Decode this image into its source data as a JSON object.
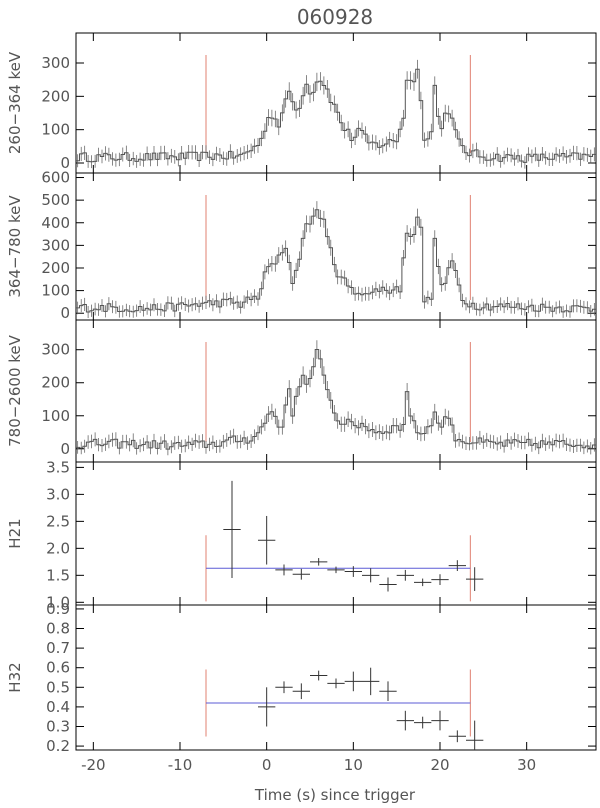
{
  "chart_data": {
    "type": "line",
    "title": "060928",
    "xlabel": "Time (s) since trigger",
    "xlim": [
      -22,
      38
    ],
    "xticks": [
      -20,
      -10,
      0,
      10,
      20,
      30
    ],
    "markers": [
      -7,
      23.5
    ],
    "panels": [
      {
        "ylabel": "260−364 keV",
        "ylim": [
          -30,
          390
        ],
        "yticks": [
          0,
          100,
          200,
          300
        ],
        "curve": [
          [
            -22,
            18
          ],
          [
            -18,
            17
          ],
          [
            -14,
            18
          ],
          [
            -10,
            18
          ],
          [
            -6,
            22
          ],
          [
            -3,
            20
          ],
          [
            -1.5,
            45
          ],
          [
            -0.5,
            70
          ],
          [
            0,
            130
          ],
          [
            0.7,
            150
          ],
          [
            1.3,
            110
          ],
          [
            2,
            160
          ],
          [
            2.6,
            220
          ],
          [
            3,
            180
          ],
          [
            3.6,
            150
          ],
          [
            4,
            200
          ],
          [
            4.6,
            235
          ],
          [
            5.2,
            210
          ],
          [
            5.8,
            245
          ],
          [
            6.3,
            255
          ],
          [
            7,
            220
          ],
          [
            7.6,
            180
          ],
          [
            8.2,
            150
          ],
          [
            8.8,
            110
          ],
          [
            9.4,
            90
          ],
          [
            10,
            70
          ],
          [
            10.6,
            100
          ],
          [
            11.2,
            80
          ],
          [
            11.8,
            60
          ],
          [
            12.4,
            55
          ],
          [
            13,
            55
          ],
          [
            14,
            60
          ],
          [
            15,
            70
          ],
          [
            15.8,
            140
          ],
          [
            16.3,
            270
          ],
          [
            16.8,
            250
          ],
          [
            17.2,
            240
          ],
          [
            17.6,
            310
          ],
          [
            18,
            90
          ],
          [
            18.5,
            70
          ],
          [
            19,
            90
          ],
          [
            19.5,
            270
          ],
          [
            19.9,
            90
          ],
          [
            20.5,
            140
          ],
          [
            21,
            160
          ],
          [
            21.6,
            110
          ],
          [
            22.2,
            60
          ],
          [
            23,
            35
          ],
          [
            25,
            20
          ],
          [
            30,
            15
          ],
          [
            35,
            18
          ],
          [
            38,
            20
          ]
        ],
        "noise": 20
      },
      {
        "ylabel": "364−780 keV",
        "ylim": [
          -30,
          620
        ],
        "yticks": [
          0,
          100,
          200,
          300,
          400,
          500,
          600
        ],
        "curve": [
          [
            -22,
            25
          ],
          [
            -18,
            25
          ],
          [
            -14,
            20
          ],
          [
            -10,
            30
          ],
          [
            -8,
            40
          ],
          [
            -6,
            45
          ],
          [
            -4,
            50
          ],
          [
            -3,
            40
          ],
          [
            -2,
            60
          ],
          [
            -1,
            70
          ],
          [
            0,
            190
          ],
          [
            0.5,
            220
          ],
          [
            1,
            210
          ],
          [
            1.5,
            250
          ],
          [
            2,
            300
          ],
          [
            2.5,
            260
          ],
          [
            3,
            140
          ],
          [
            3.5,
            190
          ],
          [
            4,
            300
          ],
          [
            4.6,
            380
          ],
          [
            5.2,
            420
          ],
          [
            5.8,
            450
          ],
          [
            6.4,
            430
          ],
          [
            7,
            330
          ],
          [
            7.6,
            250
          ],
          [
            8.2,
            180
          ],
          [
            8.8,
            150
          ],
          [
            9.4,
            120
          ],
          [
            10,
            90
          ],
          [
            11,
            100
          ],
          [
            12,
            80
          ],
          [
            13,
            110
          ],
          [
            14,
            100
          ],
          [
            15,
            110
          ],
          [
            15.6,
            110
          ],
          [
            16,
            350
          ],
          [
            16.4,
            380
          ],
          [
            16.8,
            330
          ],
          [
            17.3,
            400
          ],
          [
            17.7,
            520
          ],
          [
            18,
            60
          ],
          [
            18.5,
            50
          ],
          [
            19,
            80
          ],
          [
            19.6,
            430
          ],
          [
            19.9,
            110
          ],
          [
            20.5,
            120
          ],
          [
            21,
            200
          ],
          [
            21.6,
            220
          ],
          [
            22,
            150
          ],
          [
            22.6,
            60
          ],
          [
            24,
            35
          ],
          [
            28,
            30
          ],
          [
            33,
            25
          ],
          [
            38,
            20
          ]
        ],
        "noise": 28
      },
      {
        "ylabel": "780−2600 keV",
        "ylim": [
          -40,
          390
        ],
        "yticks": [
          0,
          100,
          200,
          300
        ],
        "curve": [
          [
            -22,
            15
          ],
          [
            -16,
            15
          ],
          [
            -10,
            10
          ],
          [
            -6,
            15
          ],
          [
            -4,
            25
          ],
          [
            -2,
            30
          ],
          [
            -1,
            45
          ],
          [
            0,
            90
          ],
          [
            0.5,
            120
          ],
          [
            1,
            100
          ],
          [
            1.5,
            60
          ],
          [
            2,
            90
          ],
          [
            2.6,
            180
          ],
          [
            3,
            110
          ],
          [
            3.6,
            180
          ],
          [
            4,
            220
          ],
          [
            4.6,
            200
          ],
          [
            5.2,
            210
          ],
          [
            5.8,
            290
          ],
          [
            6.3,
            260
          ],
          [
            7,
            190
          ],
          [
            7.6,
            120
          ],
          [
            8.2,
            90
          ],
          [
            9,
            80
          ],
          [
            10,
            70
          ],
          [
            11,
            75
          ],
          [
            12,
            60
          ],
          [
            13,
            50
          ],
          [
            14,
            60
          ],
          [
            15,
            65
          ],
          [
            15.7,
            60
          ],
          [
            16.2,
            170
          ],
          [
            16.7,
            90
          ],
          [
            17.2,
            60
          ],
          [
            18,
            45
          ],
          [
            18.8,
            70
          ],
          [
            19.4,
            110
          ],
          [
            19.9,
            60
          ],
          [
            20.5,
            90
          ],
          [
            21,
            100
          ],
          [
            21.6,
            40
          ],
          [
            22.6,
            25
          ],
          [
            26,
            15
          ],
          [
            32,
            15
          ],
          [
            38,
            15
          ]
        ],
        "noise": 20
      },
      {
        "ylabel": "H21",
        "ylim": [
          0.95,
          3.6
        ],
        "yticks": [
          1.0,
          1.5,
          2.0,
          2.5,
          3.0,
          3.5
        ],
        "fit": 1.63,
        "points": [
          {
            "x": -4,
            "dx": 1,
            "y": 2.35,
            "dy": 0.9
          },
          {
            "x": 0,
            "dx": 1,
            "y": 2.15,
            "dy": 0.45
          },
          {
            "x": 2,
            "dx": 1,
            "y": 1.6,
            "dy": 0.1
          },
          {
            "x": 4,
            "dx": 1,
            "y": 1.52,
            "dy": 0.1
          },
          {
            "x": 6,
            "dx": 1,
            "y": 1.75,
            "dy": 0.07
          },
          {
            "x": 8,
            "dx": 1,
            "y": 1.6,
            "dy": 0.06
          },
          {
            "x": 10,
            "dx": 1,
            "y": 1.57,
            "dy": 0.1
          },
          {
            "x": 12,
            "dx": 1,
            "y": 1.5,
            "dy": 0.13
          },
          {
            "x": 14,
            "dx": 1,
            "y": 1.33,
            "dy": 0.13
          },
          {
            "x": 16,
            "dx": 1,
            "y": 1.5,
            "dy": 0.1
          },
          {
            "x": 18,
            "dx": 1,
            "y": 1.37,
            "dy": 0.07
          },
          {
            "x": 20,
            "dx": 1,
            "y": 1.42,
            "dy": 0.1
          },
          {
            "x": 22,
            "dx": 1,
            "y": 1.68,
            "dy": 0.1
          },
          {
            "x": 24,
            "dx": 1,
            "y": 1.43,
            "dy": 0.22
          }
        ]
      },
      {
        "ylabel": "H32",
        "ylim": [
          0.18,
          0.92
        ],
        "yticks": [
          0.2,
          0.3,
          0.4,
          0.5,
          0.6,
          0.7,
          0.8,
          0.9
        ],
        "fit": 0.42,
        "points": [
          {
            "x": 0,
            "dx": 1,
            "y": 0.4,
            "dy": 0.1
          },
          {
            "x": 2,
            "dx": 1,
            "y": 0.5,
            "dy": 0.03
          },
          {
            "x": 4,
            "dx": 1,
            "y": 0.48,
            "dy": 0.04
          },
          {
            "x": 6,
            "dx": 1,
            "y": 0.56,
            "dy": 0.025
          },
          {
            "x": 8,
            "dx": 1,
            "y": 0.52,
            "dy": 0.025
          },
          {
            "x": 10,
            "dx": 1,
            "y": 0.53,
            "dy": 0.05
          },
          {
            "x": 12,
            "dx": 1,
            "y": 0.53,
            "dy": 0.07
          },
          {
            "x": 14,
            "dx": 1,
            "y": 0.48,
            "dy": 0.05
          },
          {
            "x": 16,
            "dx": 1,
            "y": 0.33,
            "dy": 0.05
          },
          {
            "x": 18,
            "dx": 1,
            "y": 0.32,
            "dy": 0.03
          },
          {
            "x": 20,
            "dx": 1,
            "y": 0.33,
            "dy": 0.05
          },
          {
            "x": 22,
            "dx": 1,
            "y": 0.25,
            "dy": 0.03
          },
          {
            "x": 24,
            "dx": 1,
            "y": 0.23,
            "dy": 0.1
          }
        ]
      }
    ]
  }
}
